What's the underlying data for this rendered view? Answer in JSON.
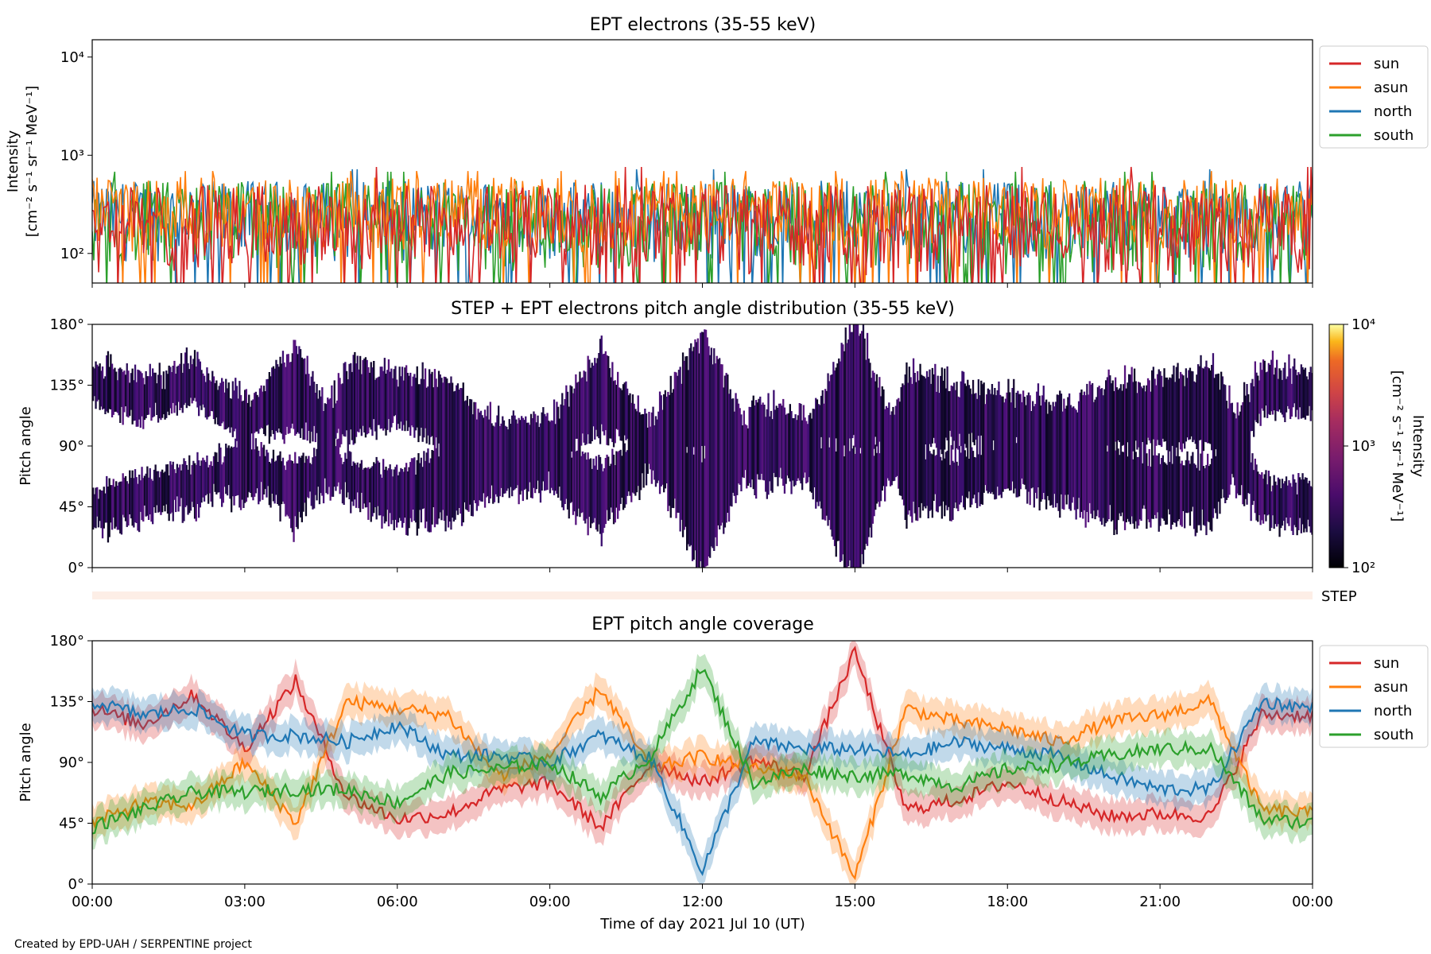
{
  "footer": "Created by EPD-UAH / SERPENTINE project",
  "xaxis": {
    "label": "Time of day 2021 Jul 10 (UT)",
    "ticks": [
      "00:00",
      "03:00",
      "06:00",
      "09:00",
      "12:00",
      "15:00",
      "18:00",
      "21:00",
      "00:00"
    ]
  },
  "chart_data": [
    {
      "type": "line",
      "title": "EPT electrons (35-55 keV)",
      "ylabel_line1": "Intensity",
      "ylabel_line2": "[cm⁻² s⁻¹ sr⁻¹ MeV⁻¹]",
      "yscale": "log",
      "ylim": [
        50,
        15000
      ],
      "xlim": [
        "00:00",
        "24:00"
      ],
      "yticks": [
        {
          "value": 100,
          "label": "10²"
        },
        {
          "value": 1000,
          "label": "10³"
        },
        {
          "value": 10000,
          "label": "10⁴"
        }
      ],
      "legend": "outside-right",
      "series": [
        {
          "name": "sun",
          "color": "#d62728",
          "typical_range": [
            60,
            500
          ],
          "peak": 760
        },
        {
          "name": "asun",
          "color": "#ff7f0e",
          "typical_range": [
            100,
            600
          ],
          "peak": 690
        },
        {
          "name": "north",
          "color": "#1f77b4",
          "typical_range": [
            80,
            550
          ],
          "peak": 720
        },
        {
          "name": "south",
          "color": "#2ca02c",
          "typical_range": [
            60,
            550
          ],
          "peak": 680
        }
      ]
    },
    {
      "type": "heatmap",
      "title": "STEP + EPT electrons pitch angle distribution (35-55 keV)",
      "ylabel": "Pitch angle",
      "ylim": [
        0,
        180
      ],
      "yticks": [
        "0°",
        "45°",
        "90°",
        "135°",
        "180°"
      ],
      "colorbar": {
        "label_line1": "Intensity",
        "label_line2": "[cm⁻² s⁻¹ sr⁻¹ MeV⁻¹]",
        "scale": "log",
        "range": [
          100,
          10000
        ],
        "ticks": [
          "10²",
          "10³",
          "10⁴"
        ],
        "colormap": "inferno"
      },
      "step_band_label": "STEP"
    },
    {
      "type": "line",
      "title": "EPT pitch angle coverage",
      "ylabel": "Pitch angle",
      "ylim": [
        0,
        180
      ],
      "yticks": [
        "0°",
        "45°",
        "90°",
        "135°",
        "180°"
      ],
      "legend": "outside-right",
      "x_hours": [
        0,
        1,
        2,
        3,
        4,
        5,
        6,
        7,
        8,
        9,
        10,
        11,
        12,
        13,
        14,
        15,
        16,
        17,
        18,
        19,
        20,
        21,
        22,
        23,
        24
      ],
      "band_halfwidth_deg": 12,
      "series": [
        {
          "name": "sun",
          "color": "#d62728",
          "values": [
            130,
            118,
            140,
            100,
            150,
            65,
            48,
            52,
            70,
            75,
            42,
            90,
            75,
            92,
            80,
            172,
            55,
            62,
            75,
            62,
            50,
            52,
            50,
            125,
            125
          ]
        },
        {
          "name": "asun",
          "color": "#ff7f0e",
          "values": [
            45,
            60,
            58,
            90,
            45,
            135,
            130,
            125,
            80,
            95,
            145,
            85,
            95,
            85,
            80,
            5,
            130,
            120,
            115,
            105,
            120,
            125,
            135,
            55,
            52
          ]
        },
        {
          "name": "north",
          "color": "#1f77b4",
          "values": [
            135,
            125,
            130,
            110,
            110,
            105,
            118,
            95,
            95,
            90,
            110,
            92,
            10,
            105,
            100,
            100,
            95,
            105,
            100,
            95,
            80,
            70,
            70,
            135,
            130
          ]
        },
        {
          "name": "south",
          "color": "#2ca02c",
          "values": [
            42,
            55,
            68,
            68,
            70,
            70,
            60,
            82,
            85,
            90,
            65,
            95,
            160,
            75,
            85,
            80,
            82,
            72,
            85,
            88,
            95,
            100,
            100,
            48,
            45
          ]
        }
      ]
    }
  ]
}
